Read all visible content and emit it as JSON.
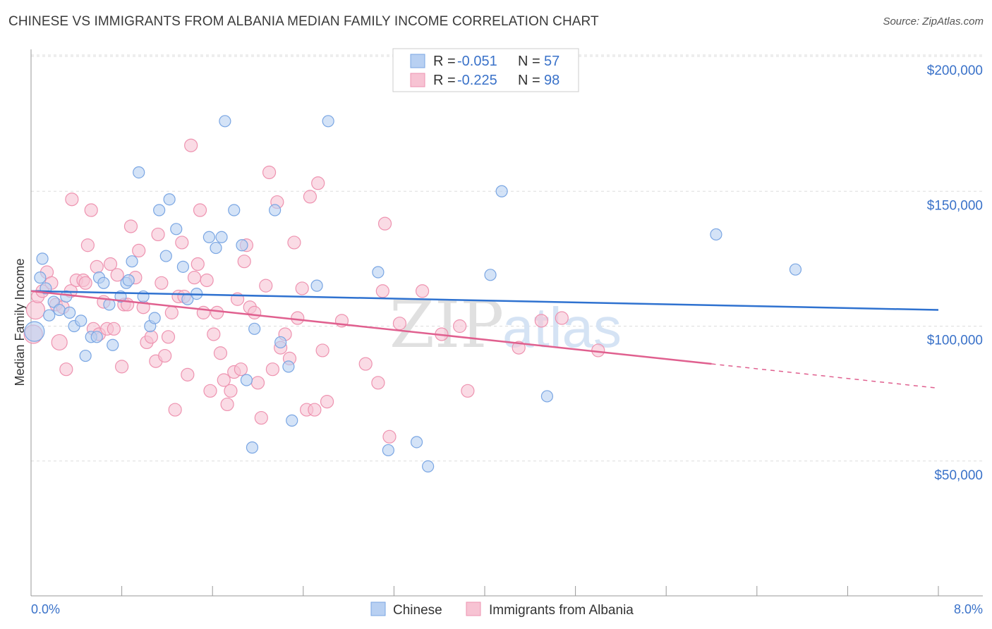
{
  "title": "CHINESE VS IMMIGRANTS FROM ALBANIA MEDIAN FAMILY INCOME CORRELATION CHART",
  "source": "Source: ZipAtlas.com",
  "watermark": {
    "zip": "ZIP",
    "atlas": "atlas"
  },
  "colors": {
    "blue_fill": "#b8d0f2",
    "blue_stroke": "#7aa6e3",
    "blue_line": "#2f72d0",
    "pink_fill": "#f7c3d3",
    "pink_stroke": "#ee93b0",
    "pink_line": "#e0608f",
    "axis_text": "#3a72c9",
    "grid": "#dddddd"
  },
  "legend": {
    "rows": [
      {
        "r_label": "R =",
        "r_value": "-0.051",
        "n_label": "N =",
        "n_value": "57"
      },
      {
        "r_label": "R =",
        "r_value": "-0.225",
        "n_label": "N =",
        "n_value": "98"
      }
    ]
  },
  "chart_data": {
    "type": "scatter",
    "xlabel": "",
    "ylabel": "Median Family Income",
    "xlim": [
      0,
      8
    ],
    "ylim": [
      0,
      210000
    ],
    "x_tick_labels": [
      "0.0%",
      "8.0%"
    ],
    "y_ticks": [
      {
        "value": 50000,
        "label": "$50,000"
      },
      {
        "value": 100000,
        "label": "$100,000"
      },
      {
        "value": 150000,
        "label": "$150,000"
      },
      {
        "value": 200000,
        "label": "$200,000"
      }
    ],
    "series": [
      {
        "name": "Chinese",
        "color": "blue",
        "r": -0.051,
        "n": 57,
        "trend": {
          "x": [
            0,
            8
          ],
          "y": [
            113000,
            106000
          ]
        },
        "points": [
          [
            0.03,
            98000,
            14
          ],
          [
            0.08,
            118000,
            8
          ],
          [
            0.1,
            125000,
            8
          ],
          [
            0.13,
            114000,
            8
          ],
          [
            0.16,
            104000,
            8
          ],
          [
            0.2,
            109000,
            8
          ],
          [
            0.25,
            106000,
            8
          ],
          [
            0.31,
            111000,
            8
          ],
          [
            0.34,
            105000,
            8
          ],
          [
            0.38,
            100000,
            8
          ],
          [
            0.44,
            102000,
            8
          ],
          [
            0.48,
            89000,
            8
          ],
          [
            0.53,
            96000,
            8
          ],
          [
            0.58,
            96000,
            8
          ],
          [
            0.6,
            118000,
            8
          ],
          [
            0.64,
            116000,
            8
          ],
          [
            0.69,
            108000,
            8
          ],
          [
            0.72,
            93000,
            8
          ],
          [
            0.79,
            111000,
            8
          ],
          [
            0.84,
            116000,
            8
          ],
          [
            0.86,
            117000,
            8
          ],
          [
            0.89,
            124000,
            8
          ],
          [
            0.95,
            157000,
            8
          ],
          [
            0.99,
            111000,
            8
          ],
          [
            1.05,
            100000,
            8
          ],
          [
            1.09,
            103000,
            8
          ],
          [
            1.13,
            143000,
            8
          ],
          [
            1.19,
            126000,
            8
          ],
          [
            1.22,
            147000,
            8
          ],
          [
            1.28,
            136000,
            8
          ],
          [
            1.34,
            122000,
            8
          ],
          [
            1.38,
            110000,
            8
          ],
          [
            1.46,
            112000,
            8
          ],
          [
            1.57,
            133000,
            8
          ],
          [
            1.63,
            129000,
            8
          ],
          [
            1.68,
            133000,
            8
          ],
          [
            1.71,
            176000,
            8
          ],
          [
            1.79,
            143000,
            8
          ],
          [
            1.86,
            130000,
            8
          ],
          [
            1.9,
            80000,
            8
          ],
          [
            1.95,
            55000,
            8
          ],
          [
            1.97,
            99000,
            8
          ],
          [
            2.15,
            143000,
            8
          ],
          [
            2.2,
            94000,
            8
          ],
          [
            2.27,
            85000,
            8
          ],
          [
            2.3,
            65000,
            8
          ],
          [
            2.52,
            115000,
            8
          ],
          [
            2.62,
            176000,
            8
          ],
          [
            3.06,
            120000,
            8
          ],
          [
            3.15,
            54000,
            8
          ],
          [
            3.4,
            57000,
            8
          ],
          [
            3.5,
            48000,
            8
          ],
          [
            4.05,
            119000,
            8
          ],
          [
            4.15,
            150000,
            8
          ],
          [
            4.55,
            74000,
            8
          ],
          [
            6.04,
            134000,
            8
          ],
          [
            6.74,
            121000,
            8
          ]
        ]
      },
      {
        "name": "Immigrants from Albania",
        "color": "pink",
        "r": -0.225,
        "n": 98,
        "trend": {
          "x": [
            0,
            6.0
          ],
          "y": [
            113000,
            86000
          ]
        },
        "trend_dashed": {
          "x": [
            6.0,
            8.0
          ],
          "y": [
            86000,
            77000
          ]
        },
        "points": [
          [
            0.02,
            97000,
            13
          ],
          [
            0.04,
            106000,
            13
          ],
          [
            0.06,
            111000,
            9
          ],
          [
            0.1,
            113000,
            9
          ],
          [
            0.14,
            120000,
            9
          ],
          [
            0.18,
            116000,
            9
          ],
          [
            0.22,
            108000,
            9
          ],
          [
            0.25,
            94000,
            11
          ],
          [
            0.28,
            107000,
            9
          ],
          [
            0.31,
            84000,
            9
          ],
          [
            0.35,
            113000,
            9
          ],
          [
            0.36,
            147000,
            9
          ],
          [
            0.4,
            117000,
            9
          ],
          [
            0.46,
            117000,
            9
          ],
          [
            0.48,
            116000,
            9
          ],
          [
            0.5,
            130000,
            9
          ],
          [
            0.53,
            143000,
            9
          ],
          [
            0.55,
            99000,
            9
          ],
          [
            0.58,
            122000,
            9
          ],
          [
            0.6,
            97000,
            9
          ],
          [
            0.64,
            109000,
            9
          ],
          [
            0.67,
            99000,
            9
          ],
          [
            0.7,
            123000,
            9
          ],
          [
            0.73,
            99000,
            9
          ],
          [
            0.76,
            119000,
            9
          ],
          [
            0.8,
            85000,
            9
          ],
          [
            0.82,
            108000,
            9
          ],
          [
            0.85,
            108000,
            9
          ],
          [
            0.88,
            137000,
            9
          ],
          [
            0.92,
            118000,
            9
          ],
          [
            0.95,
            128000,
            9
          ],
          [
            0.99,
            107000,
            9
          ],
          [
            1.02,
            94000,
            9
          ],
          [
            1.06,
            96000,
            9
          ],
          [
            1.1,
            87000,
            9
          ],
          [
            1.12,
            134000,
            9
          ],
          [
            1.15,
            116000,
            9
          ],
          [
            1.18,
            89000,
            9
          ],
          [
            1.21,
            96000,
            9
          ],
          [
            1.24,
            105000,
            9
          ],
          [
            1.27,
            69000,
            9
          ],
          [
            1.3,
            111000,
            9
          ],
          [
            1.33,
            131000,
            9
          ],
          [
            1.35,
            111000,
            9
          ],
          [
            1.38,
            82000,
            9
          ],
          [
            1.41,
            167000,
            9
          ],
          [
            1.44,
            118000,
            9
          ],
          [
            1.47,
            123000,
            9
          ],
          [
            1.49,
            143000,
            9
          ],
          [
            1.52,
            105000,
            9
          ],
          [
            1.55,
            117000,
            9
          ],
          [
            1.58,
            76000,
            9
          ],
          [
            1.61,
            97000,
            9
          ],
          [
            1.64,
            105000,
            9
          ],
          [
            1.67,
            90000,
            9
          ],
          [
            1.7,
            80000,
            9
          ],
          [
            1.73,
            71000,
            9
          ],
          [
            1.76,
            76000,
            9
          ],
          [
            1.79,
            83000,
            9
          ],
          [
            1.82,
            110000,
            9
          ],
          [
            1.85,
            84000,
            9
          ],
          [
            1.88,
            124000,
            9
          ],
          [
            1.9,
            130000,
            9
          ],
          [
            1.93,
            107000,
            9
          ],
          [
            1.97,
            105000,
            9
          ],
          [
            2.0,
            79000,
            9
          ],
          [
            2.03,
            66000,
            9
          ],
          [
            2.07,
            115000,
            9
          ],
          [
            2.1,
            157000,
            9
          ],
          [
            2.13,
            84000,
            9
          ],
          [
            2.17,
            146000,
            9
          ],
          [
            2.2,
            92000,
            9
          ],
          [
            2.24,
            97000,
            9
          ],
          [
            2.28,
            88000,
            9
          ],
          [
            2.32,
            131000,
            9
          ],
          [
            2.35,
            103000,
            9
          ],
          [
            2.39,
            114000,
            9
          ],
          [
            2.43,
            69000,
            9
          ],
          [
            2.46,
            148000,
            9
          ],
          [
            2.5,
            69000,
            9
          ],
          [
            2.53,
            153000,
            9
          ],
          [
            2.57,
            91000,
            9
          ],
          [
            2.61,
            72000,
            9
          ],
          [
            2.74,
            102000,
            9
          ],
          [
            2.95,
            86000,
            9
          ],
          [
            3.06,
            79000,
            9
          ],
          [
            3.1,
            113000,
            9
          ],
          [
            3.12,
            138000,
            9
          ],
          [
            3.16,
            59000,
            9
          ],
          [
            3.25,
            101000,
            9
          ],
          [
            3.45,
            113000,
            9
          ],
          [
            3.62,
            97000,
            9
          ],
          [
            3.85,
            76000,
            9
          ],
          [
            4.3,
            92000,
            9
          ],
          [
            4.68,
            103000,
            9
          ],
          [
            5.0,
            91000,
            9
          ],
          [
            4.5,
            102000,
            9
          ],
          [
            3.78,
            100000,
            9
          ]
        ]
      }
    ]
  }
}
